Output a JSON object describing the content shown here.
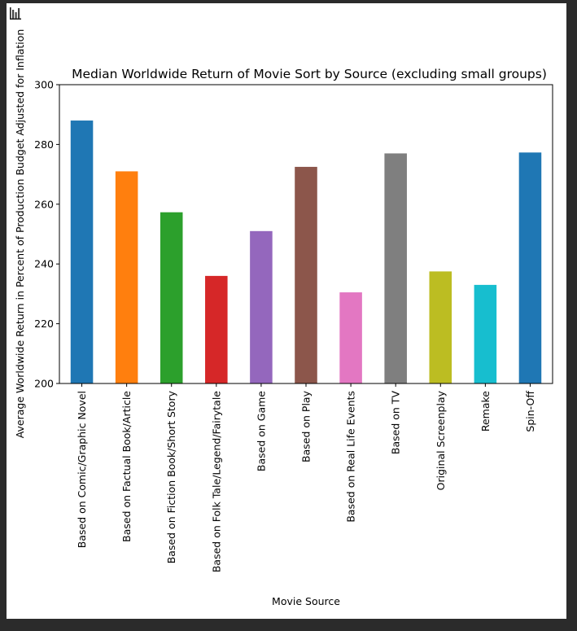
{
  "toolbar": {
    "icon": "bar-chart-icon"
  },
  "chart_data": {
    "type": "bar",
    "title": "Median Worldwide Return of Movie Sort by Source (excluding small groups)",
    "xlabel": "Movie Source",
    "ylabel": "Average Worldwide Return in Percent of Production Budget Adjusted for Inflation",
    "ylim": [
      200,
      300
    ],
    "yticks": [
      200,
      220,
      240,
      260,
      280,
      300
    ],
    "grid": false,
    "legend": "none",
    "categories": [
      "Based on Comic/Graphic Novel",
      "Based on Factual Book/Article",
      "Based on Fiction Book/Short Story",
      "Based on Folk Tale/Legend/Fairytale",
      "Based on Game",
      "Based on Play",
      "Based on Real Life Events",
      "Based on TV",
      "Original Screenplay",
      "Remake",
      "Spin-Off"
    ],
    "values": [
      288,
      271,
      257.3,
      236,
      251,
      272.5,
      230.5,
      277,
      237.5,
      233,
      277.3
    ],
    "colors": [
      "#1f77b4",
      "#ff7f0e",
      "#2ca02c",
      "#d62728",
      "#9467bd",
      "#8c564b",
      "#e377c2",
      "#7f7f7f",
      "#bcbd22",
      "#17becf",
      "#1f77b4"
    ]
  }
}
